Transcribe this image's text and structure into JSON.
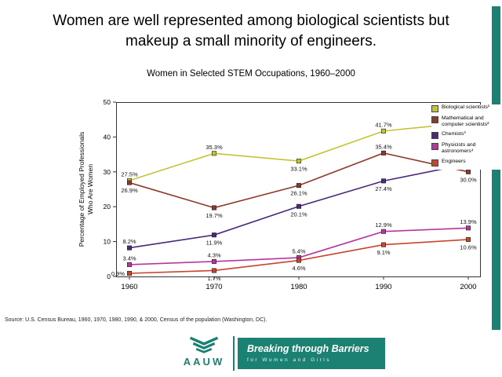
{
  "slide": {
    "title": "Women are well represented among biological scientists but makeup a small minority of engineers.",
    "title_lines": [
      "Women are well represented among biological scientists but",
      "makeup a small minority of engineers."
    ],
    "source": "Source: U.S. Census Bureau, 1960, 1970, 1980, 1990, & 2000, Census of the population (Washington, DC).",
    "accent_color": "#1B8173"
  },
  "footer": {
    "logo_text": "AAUW",
    "banner_title": "Breaking through Barriers",
    "banner_subtitle": "for Women and Girls"
  },
  "chart_data": {
    "type": "line",
    "title": "Women in Selected STEM Occupations, 1960–2000",
    "ylabel": "Percentage of Employed Professionals Who Are Women",
    "ylabel_lines": [
      "Percentage of Employed Professionals",
      "Who Are Women"
    ],
    "xlabel": "",
    "x": [
      1960,
      1970,
      1980,
      1990,
      2000
    ],
    "ylim": [
      0,
      50
    ],
    "yticks": [
      0,
      10,
      20,
      30,
      40,
      50
    ],
    "grid": false,
    "legend_position": "right",
    "series": [
      {
        "name": "Biological scientists¹",
        "color": "#C4C433",
        "values": [
          27.5,
          35.3,
          33.1,
          41.7,
          44.1
        ],
        "labels": [
          "27.5%",
          "35.3%",
          "33.1%",
          "41.7%",
          "44.1%"
        ],
        "label_side": [
          "above",
          "above",
          "below",
          "above",
          "above"
        ]
      },
      {
        "name": "Mathematical and computer scientists²",
        "color": "#8E392B",
        "values": [
          26.9,
          19.7,
          26.1,
          35.4,
          30.0
        ],
        "labels": [
          "26.9%",
          "19.7%",
          "26.1%",
          "35.4%",
          "30.0%"
        ],
        "label_side": [
          "below",
          "below",
          "below",
          "above",
          "below"
        ]
      },
      {
        "name": "Chemists³",
        "color": "#4A2A7A",
        "values": [
          8.2,
          11.9,
          20.1,
          27.4,
          32.3
        ],
        "labels": [
          "8.2%",
          "11.9%",
          "20.1%",
          "27.4%",
          "32.3%"
        ],
        "label_side": [
          "above",
          "below",
          "below",
          "below",
          "above"
        ]
      },
      {
        "name": "Physicists and astronomers⁴",
        "color": "#B5379E",
        "values": [
          3.4,
          4.3,
          5.4,
          12.9,
          13.9
        ],
        "labels": [
          "3.4%",
          "4.3%",
          "5.4%",
          "12.9%",
          "13.9%"
        ],
        "label_side": [
          "above",
          "above",
          "above",
          "above",
          "above"
        ]
      },
      {
        "name": "Engineers",
        "color": "#C8442C",
        "values": [
          0.9,
          1.7,
          4.6,
          9.1,
          10.6
        ],
        "labels": [
          "0.9%",
          "1.7%",
          "4.6%",
          "9.1%",
          "10.6%"
        ],
        "label_side": [
          "left",
          "below",
          "below",
          "below",
          "below"
        ]
      }
    ]
  }
}
